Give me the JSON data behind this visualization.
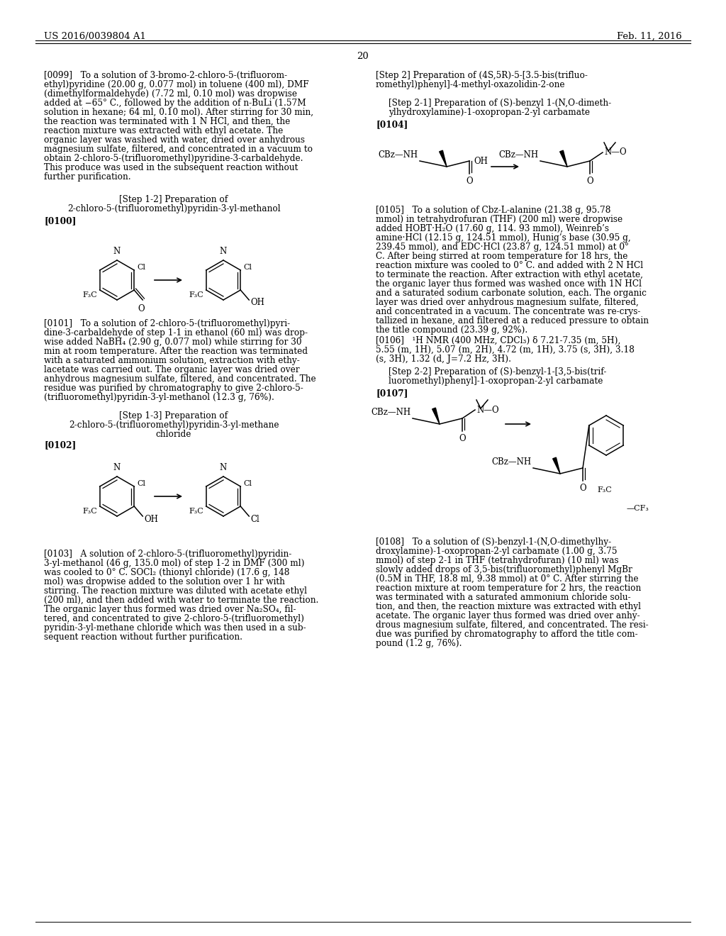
{
  "background_color": "#ffffff",
  "header_left": "US 2016/0039804 A1",
  "header_right": "Feb. 11, 2016",
  "page_number": "20"
}
